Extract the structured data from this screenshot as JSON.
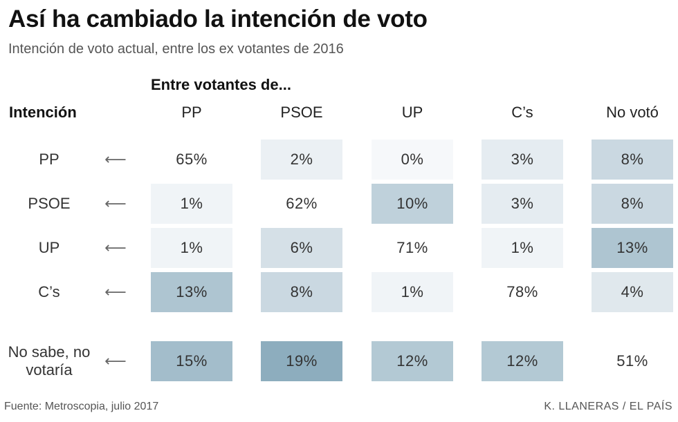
{
  "title": "Así ha cambiado la intención de voto",
  "subtitle": "Intención de voto actual, entre los ex votantes de 2016",
  "footer": {
    "source": "Fuente: Metroscopia, julio 2017",
    "credit": "K. LLANERAS / EL PAÍS"
  },
  "chart_data": {
    "type": "table",
    "title": "Así ha cambiado la intención de voto",
    "subtitle": "Intención de voto actual, entre los ex votantes de 2016",
    "column_group_label": "Entre votantes de...",
    "row_header": "Intención",
    "arrow_glyph": "⟵",
    "columns": [
      "PP",
      "PSOE",
      "UP",
      "C’s",
      "No votó"
    ],
    "rows": [
      {
        "label": "PP",
        "values": [
          65,
          2,
          0,
          3,
          8
        ],
        "display": [
          "65%",
          "2%",
          "0%",
          "3%",
          "8%"
        ]
      },
      {
        "label": "PSOE",
        "values": [
          1,
          62,
          10,
          3,
          8
        ],
        "display": [
          "1%",
          "62%",
          "10%",
          "3%",
          "8%"
        ]
      },
      {
        "label": "UP",
        "values": [
          1,
          6,
          71,
          1,
          13
        ],
        "display": [
          "1%",
          "6%",
          "71%",
          "1%",
          "13%"
        ]
      },
      {
        "label": "C’s",
        "values": [
          13,
          8,
          1,
          78,
          4
        ],
        "display": [
          "13%",
          "8%",
          "1%",
          "78%",
          "4%"
        ]
      },
      {
        "label": "No sabe, no votaría",
        "values": [
          15,
          19,
          12,
          12,
          51
        ],
        "display": [
          "15%",
          "19%",
          "12%",
          "12%",
          "51%"
        ]
      }
    ],
    "unit": "%",
    "color_scale": {
      "low": "#f6f8fa",
      "high": "#87a9bb",
      "max_shaded_value": 20
    },
    "diagonal_unshaded": true
  }
}
